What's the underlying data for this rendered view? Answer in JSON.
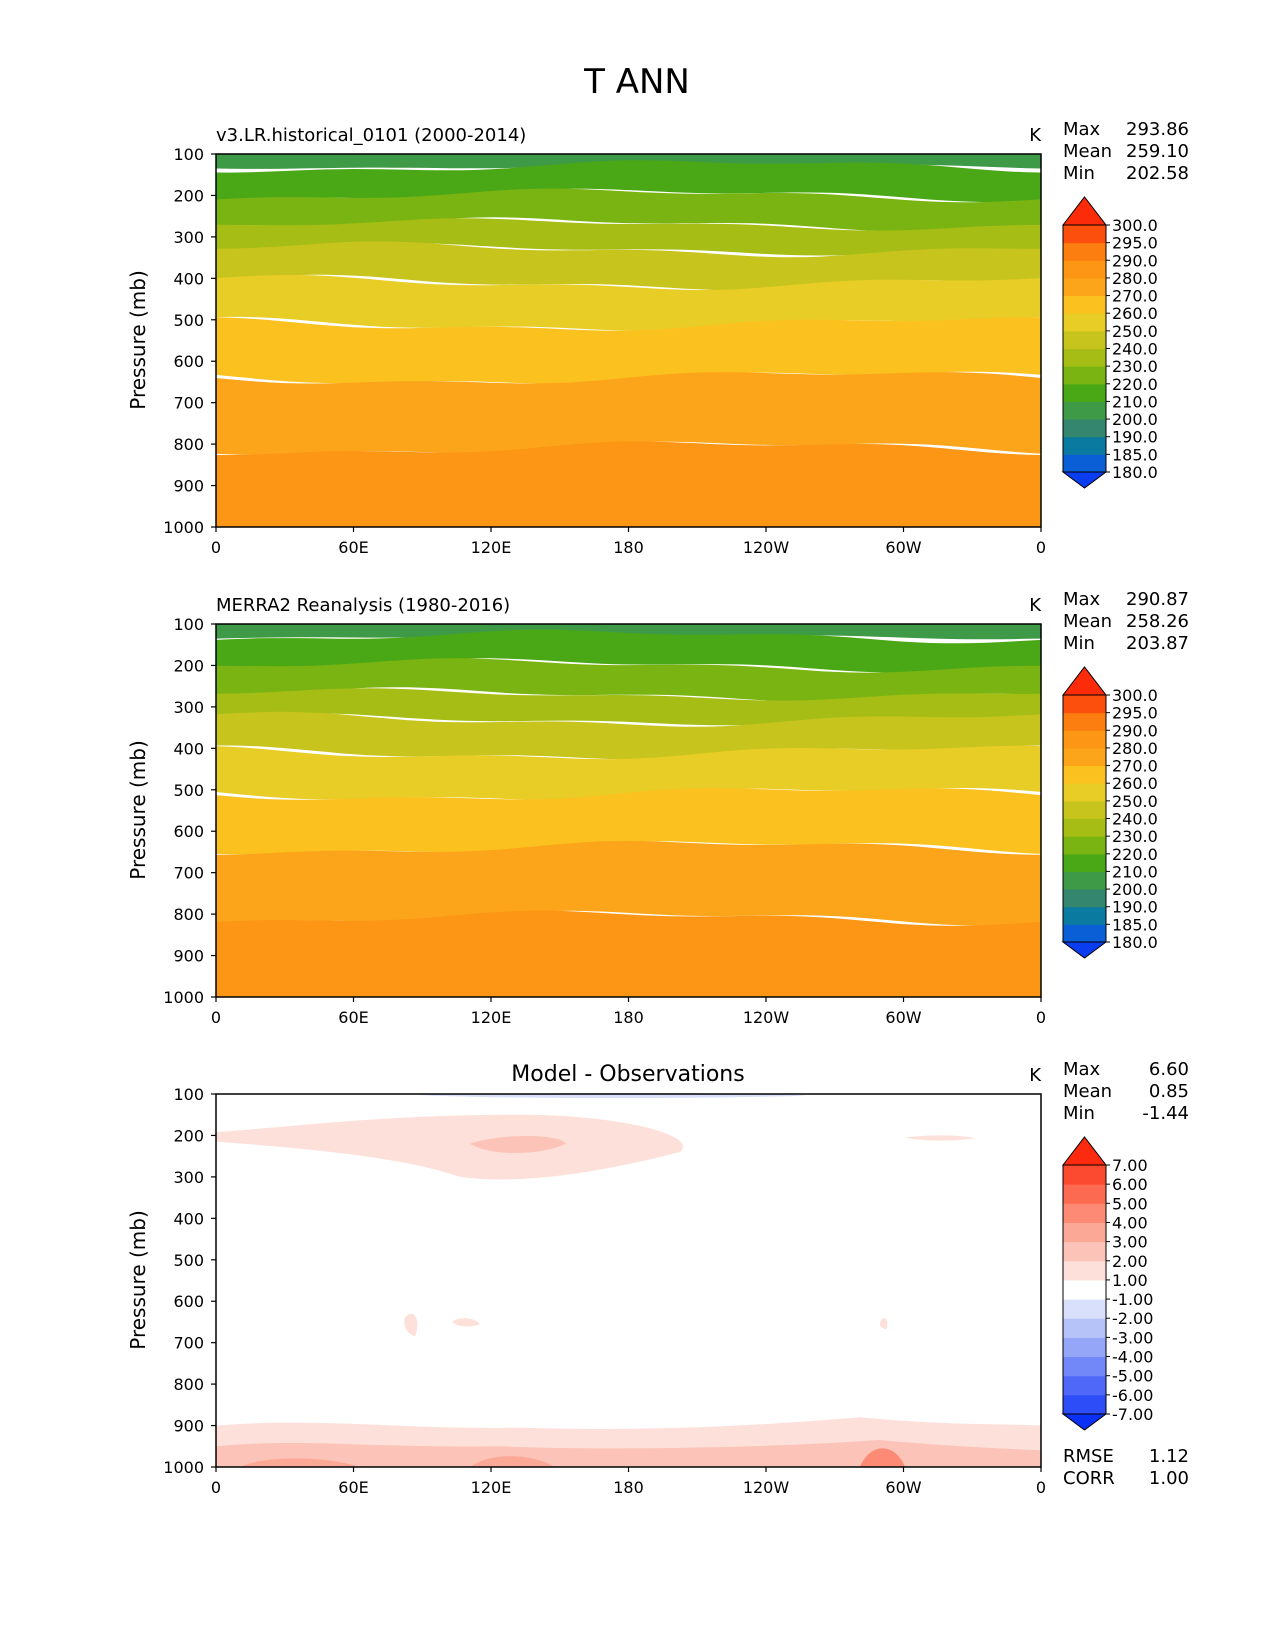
{
  "figure": {
    "title": "T ANN"
  },
  "chart_data": [
    {
      "type": "heatmap",
      "title": "v3.LR.historical_0101 (2000-2014)",
      "units": "K",
      "ylabel": "Pressure (mb)",
      "xticks": [
        "0",
        "60E",
        "120E",
        "180",
        "120W",
        "60W",
        "0"
      ],
      "yticks": [
        "100",
        "200",
        "300",
        "400",
        "500",
        "600",
        "700",
        "800",
        "900",
        "1000"
      ],
      "ylim": [
        1000,
        100
      ],
      "stats": {
        "max_label": "Max",
        "max": "293.86",
        "mean_label": "Mean",
        "mean": "259.10",
        "min_label": "Min",
        "min": "202.58"
      },
      "colorbar": {
        "levels": [
          "180.0",
          "185.0",
          "190.0",
          "200.0",
          "210.0",
          "220.0",
          "230.0",
          "240.0",
          "250.0",
          "260.0",
          "270.0",
          "280.0",
          "290.0",
          "295.0",
          "300.0"
        ],
        "colors": [
          "#0a3df0",
          "#0a5fd6",
          "#0a7aa0",
          "#35866e",
          "#3f9a47",
          "#4aa816",
          "#7ab412",
          "#a6bd15",
          "#c8c41e",
          "#e8cd26",
          "#fbc21f",
          "#fca51a",
          "#fc9614",
          "#fc7d10",
          "#fc4e0c",
          "#fc2c0a"
        ]
      },
      "regions": [
        {
          "range": "100-130",
          "color": "#3f9a47"
        },
        {
          "range": "130-200",
          "color": "#4aa816"
        },
        {
          "range": "200-270",
          "color": "#7ab412"
        },
        {
          "range": "270-330",
          "color": "#a6bd15"
        },
        {
          "range": "330-410",
          "color": "#c8c41e"
        },
        {
          "range": "410-510",
          "color": "#e8cd26"
        },
        {
          "range": "510-640",
          "color": "#fbc21f"
        },
        {
          "range": "640-810",
          "color": "#fca51a"
        },
        {
          "range": "810-1000",
          "color": "#fc9614"
        }
      ]
    },
    {
      "type": "heatmap",
      "title": "MERRA2 Reanalysis (1980-2016)",
      "units": "K",
      "ylabel": "Pressure (mb)",
      "xticks": [
        "0",
        "60E",
        "120E",
        "180",
        "120W",
        "60W",
        "0"
      ],
      "yticks": [
        "100",
        "200",
        "300",
        "400",
        "500",
        "600",
        "700",
        "800",
        "900",
        "1000"
      ],
      "ylim": [
        1000,
        100
      ],
      "stats": {
        "max_label": "Max",
        "max": "290.87",
        "mean_label": "Mean",
        "mean": "258.26",
        "min_label": "Min",
        "min": "203.87"
      },
      "colorbar": {
        "levels": [
          "180.0",
          "185.0",
          "190.0",
          "200.0",
          "210.0",
          "220.0",
          "230.0",
          "240.0",
          "250.0",
          "260.0",
          "270.0",
          "280.0",
          "290.0",
          "295.0",
          "300.0"
        ],
        "colors": [
          "#0a3df0",
          "#0a5fd6",
          "#0a7aa0",
          "#35866e",
          "#3f9a47",
          "#4aa816",
          "#7ab412",
          "#a6bd15",
          "#c8c41e",
          "#e8cd26",
          "#fbc21f",
          "#fca51a",
          "#fc9614",
          "#fc7d10",
          "#fc4e0c",
          "#fc2c0a"
        ]
      },
      "regions": [
        {
          "range": "100-130",
          "color": "#3f9a47"
        },
        {
          "range": "130-200",
          "color": "#4aa816"
        },
        {
          "range": "200-270",
          "color": "#7ab412"
        },
        {
          "range": "270-330",
          "color": "#a6bd15"
        },
        {
          "range": "330-410",
          "color": "#c8c41e"
        },
        {
          "range": "410-510",
          "color": "#e8cd26"
        },
        {
          "range": "510-640",
          "color": "#fbc21f"
        },
        {
          "range": "640-810",
          "color": "#fca51a"
        },
        {
          "range": "810-1000",
          "color": "#fc9614"
        }
      ]
    },
    {
      "type": "heatmap",
      "title": "Model - Observations",
      "units": "K",
      "ylabel": "Pressure (mb)",
      "xticks": [
        "0",
        "60E",
        "120E",
        "180",
        "120W",
        "60W",
        "0"
      ],
      "yticks": [
        "100",
        "200",
        "300",
        "400",
        "500",
        "600",
        "700",
        "800",
        "900",
        "1000"
      ],
      "ylim": [
        1000,
        100
      ],
      "stats": {
        "max_label": "Max",
        "max": "6.60",
        "mean_label": "Mean",
        "mean": "0.85",
        "min_label": "Min",
        "min": "-1.44"
      },
      "extra_stats": [
        {
          "label": "RMSE",
          "value": "1.12"
        },
        {
          "label": "CORR",
          "value": "1.00"
        }
      ],
      "colorbar": {
        "levels": [
          "-7.00",
          "-6.00",
          "-5.00",
          "-4.00",
          "-3.00",
          "-2.00",
          "-1.00",
          "1.00",
          "2.00",
          "3.00",
          "4.00",
          "5.00",
          "6.00",
          "7.00"
        ],
        "colors": [
          "#0a2ff5",
          "#2c4df8",
          "#5068f8",
          "#7388f8",
          "#95a6f8",
          "#b6c3f8",
          "#d8e0fb",
          "#ffffff",
          "#fde0da",
          "#fcc4b8",
          "#fca896",
          "#fc8a74",
          "#fc6a52",
          "#fc4a30",
          "#fc2a0e"
        ]
      },
      "regions": []
    }
  ]
}
